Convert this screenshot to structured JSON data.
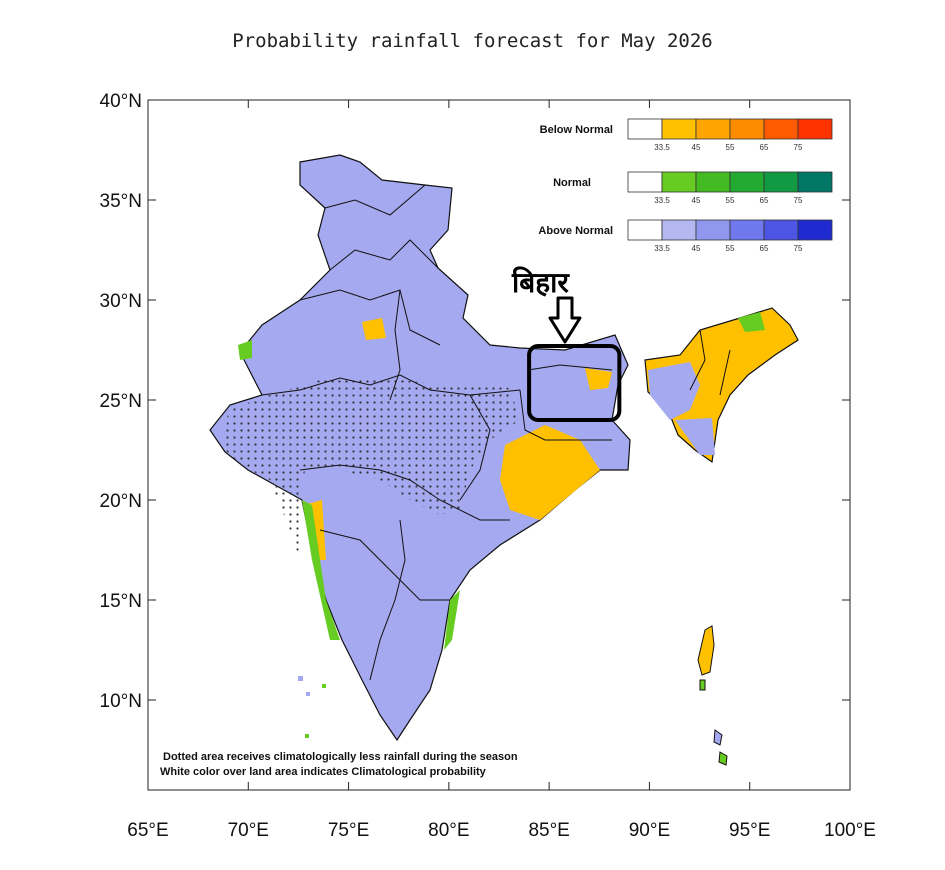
{
  "map": {
    "title": "Probability rainfall forecast for May 2026",
    "lat_ticks": [
      "40°N",
      "35°N",
      "30°N",
      "25°N",
      "20°N",
      "15°N",
      "10°N"
    ],
    "lon_ticks": [
      "65°E",
      "70°E",
      "75°E",
      "80°E",
      "85°E",
      "90°E",
      "95°E",
      "100°E"
    ],
    "extent": {
      "lon": [
        65,
        100
      ],
      "lat": [
        5.5,
        40
      ]
    },
    "legend": [
      {
        "label": "Below Normal",
        "colors": [
          "#ffffff",
          "#ffc000",
          "#ffa500",
          "#ff8c00",
          "#ff5a00",
          "#ff3300"
        ]
      },
      {
        "label": "Normal",
        "colors": [
          "#ffffff",
          "#66cc22",
          "#44bb22",
          "#22aa33",
          "#119944",
          "#007766"
        ]
      },
      {
        "label": "Above Normal",
        "colors": [
          "#ffffff",
          "#b3b8f0",
          "#9098ee",
          "#6f78ec",
          "#4c55e4",
          "#1f2bd0"
        ]
      }
    ],
    "legend_ticks": [
      "33.5",
      "45",
      "55",
      "65",
      "75"
    ],
    "notes": [
      "Dotted area receives climatologically less rainfall during the season",
      "White color over land area indicates Climatological probability"
    ],
    "callout": {
      "label": "बिहार",
      "lon_range": [
        84,
        88.5
      ],
      "lat_range": [
        24,
        27.7
      ]
    },
    "colors": {
      "above_normal": "#a4a9f0",
      "normal": "#66cc22",
      "below_normal": "#ffc000",
      "boundary": "#111111"
    }
  }
}
